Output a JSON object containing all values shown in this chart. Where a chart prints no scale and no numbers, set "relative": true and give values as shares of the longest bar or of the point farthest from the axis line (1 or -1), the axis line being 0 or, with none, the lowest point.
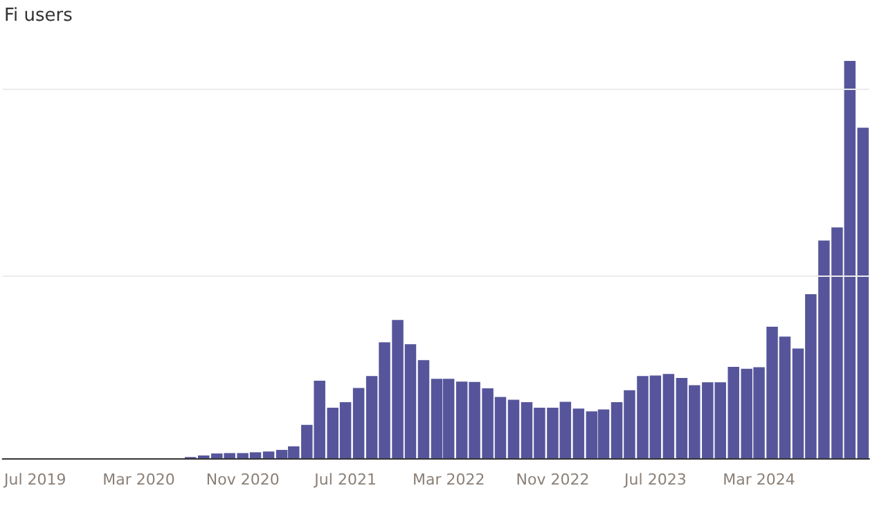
{
  "chart_data": {
    "type": "bar",
    "title": "Fi users",
    "relative": true,
    "ref_lines": [
      {
        "axis": "y",
        "value": 0.463,
        "color": "#ebebeb"
      },
      {
        "axis": "y",
        "value": 0.926,
        "color": "#ebebeb"
      }
    ],
    "color": "#56559b",
    "xlim": [
      "2019-04-15",
      "2024-11-16"
    ],
    "xticks": [
      {
        "value": "2019-07",
        "label": "Jul 2019"
      },
      {
        "value": "2020-03",
        "label": "Mar 2020"
      },
      {
        "value": "2020-11",
        "label": "Nov 2020"
      },
      {
        "value": "2021-07",
        "label": "Jul 2021"
      },
      {
        "value": "2022-03",
        "label": "Mar 2022"
      },
      {
        "value": "2022-11",
        "label": "Nov 2022"
      },
      {
        "value": "2023-07",
        "label": "Jul 2023"
      },
      {
        "value": "2024-03",
        "label": "Mar 2024"
      }
    ],
    "x": [
      "2020-07",
      "2020-08",
      "2020-09",
      "2020-10",
      "2020-11",
      "2020-12",
      "2021-01",
      "2021-02",
      "2021-03",
      "2021-04",
      "2021-05",
      "2021-06",
      "2021-07",
      "2021-08",
      "2021-09",
      "2021-10",
      "2021-11",
      "2021-12",
      "2022-01",
      "2022-02",
      "2022-03",
      "2022-04",
      "2022-05",
      "2022-06",
      "2022-07",
      "2022-08",
      "2022-09",
      "2022-10",
      "2022-11",
      "2022-12",
      "2023-01",
      "2023-02",
      "2023-03",
      "2023-04",
      "2023-05",
      "2023-06",
      "2023-07",
      "2023-08",
      "2023-09",
      "2023-10",
      "2023-11",
      "2023-12",
      "2024-01",
      "2024-02",
      "2024-03",
      "2024-04",
      "2024-05",
      "2024-06",
      "2024-07",
      "2024-08",
      "2024-09",
      "2024-10",
      "2024-11"
    ],
    "values": [
      0.003,
      0.007,
      0.012,
      0.013,
      0.013,
      0.015,
      0.017,
      0.021,
      0.03,
      0.084,
      0.195,
      0.127,
      0.141,
      0.177,
      0.207,
      0.292,
      0.348,
      0.287,
      0.247,
      0.2,
      0.2,
      0.193,
      0.192,
      0.176,
      0.154,
      0.147,
      0.141,
      0.127,
      0.127,
      0.142,
      0.125,
      0.118,
      0.123,
      0.141,
      0.171,
      0.207,
      0.208,
      0.212,
      0.202,
      0.184,
      0.191,
      0.191,
      0.23,
      0.225,
      0.229,
      0.331,
      0.306,
      0.276,
      0.413,
      0.548,
      0.581,
      1,
      0.832
    ]
  }
}
